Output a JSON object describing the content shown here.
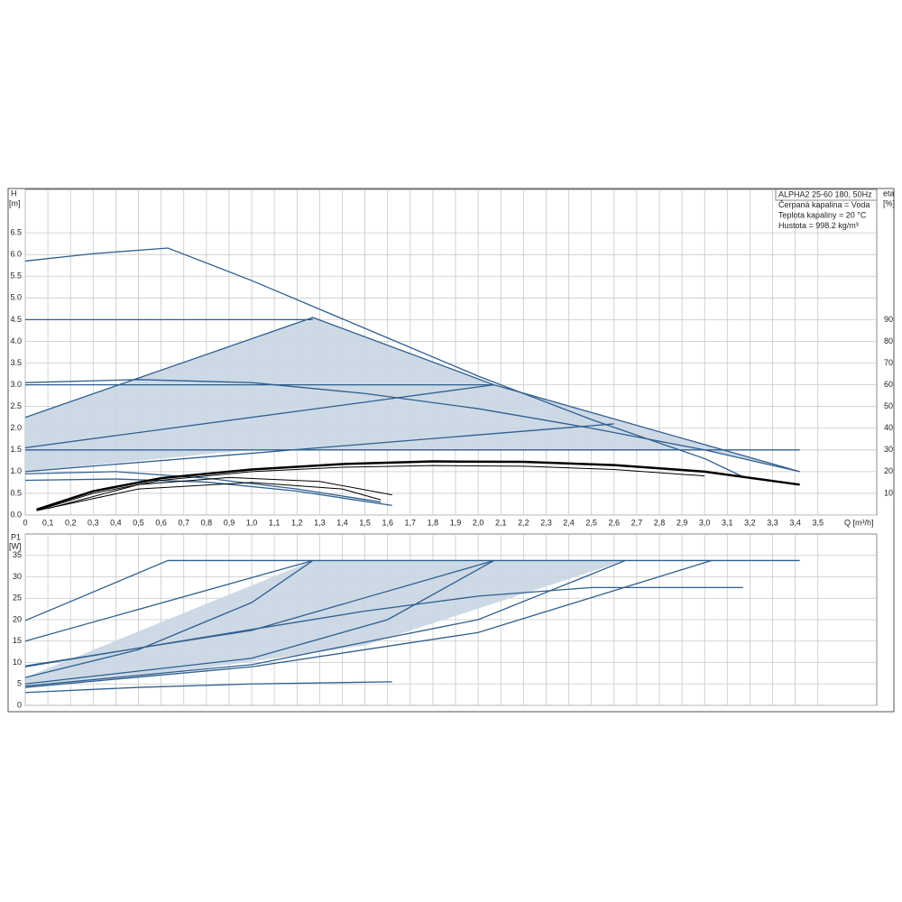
{
  "chart_data": [
    {
      "type": "line",
      "axis_label_y": "H",
      "axis_unit_y": "[m]",
      "axis_label_y2": "eta",
      "axis_unit_y2": "[%]",
      "axis_label_x": "Q [m³/h]",
      "info": [
        "ALPHA2 25-60 180, 50Hz",
        "Čerpaná kapalina = Voda",
        "Teplota kapaliny = 20 °C",
        "Hustota = 998.2 kg/m³"
      ],
      "xlim": [
        0,
        3.76
      ],
      "ylim": [
        0,
        7.5
      ],
      "y2lim": [
        0,
        150
      ],
      "grid": true,
      "xticks": [
        0,
        {
          "value": 0.1,
          "label": "0,1"
        },
        {
          "value": 0.2,
          "label": "0,2"
        },
        {
          "value": 0.3,
          "label": "0,3"
        },
        {
          "value": 0.4,
          "label": "0,4"
        },
        {
          "value": 0.5,
          "label": "0,5"
        },
        {
          "value": 0.6,
          "label": "0,6"
        },
        {
          "value": 0.7,
          "label": "0,7"
        },
        {
          "value": 0.8,
          "label": "0,8"
        },
        {
          "value": 0.9,
          "label": "0,9"
        },
        {
          "value": 1.0,
          "label": "1,0"
        },
        {
          "value": 1.1,
          "label": "1,1"
        },
        {
          "value": 1.2,
          "label": "1,2"
        },
        {
          "value": 1.3,
          "label": "1,3"
        },
        {
          "value": 1.4,
          "label": "1,4"
        },
        {
          "value": 1.5,
          "label": "1,5"
        },
        {
          "value": 1.6,
          "label": "1,6"
        },
        {
          "value": 1.7,
          "label": "1,7"
        },
        {
          "value": 1.8,
          "label": "1,8"
        },
        {
          "value": 1.9,
          "label": "1,9"
        },
        {
          "value": 2.0,
          "label": "2,0"
        },
        {
          "value": 2.1,
          "label": "2,1"
        },
        {
          "value": 2.2,
          "label": "2,2"
        },
        {
          "value": 2.3,
          "label": "2,3"
        },
        {
          "value": 2.4,
          "label": "2,4"
        },
        {
          "value": 2.5,
          "label": "2,5"
        },
        {
          "value": 2.6,
          "label": "2,6"
        },
        {
          "value": 2.7,
          "label": "2,7"
        },
        {
          "value": 2.8,
          "label": "2,8"
        },
        {
          "value": 2.9,
          "label": "2,9"
        },
        {
          "value": 3.0,
          "label": "3,0"
        },
        {
          "value": 3.1,
          "label": "3,1"
        },
        {
          "value": 3.2,
          "label": "3,2"
        },
        {
          "value": 3.3,
          "label": "3,3"
        },
        {
          "value": 3.4,
          "label": "3,4"
        },
        {
          "value": 3.5,
          "label": "3,5"
        }
      ],
      "yticks": [
        {
          "value": 0,
          "label": "0.0"
        },
        0.5,
        {
          "value": 1,
          "label": "1.0"
        },
        1.5,
        {
          "value": 2,
          "label": "2.0"
        },
        2.5,
        {
          "value": 3,
          "label": "3.0"
        },
        3.5,
        {
          "value": 4,
          "label": "4.0"
        },
        4.5,
        {
          "value": 5,
          "label": "5.0"
        },
        5.5,
        {
          "value": 6,
          "label": "6.0"
        },
        6.5
      ],
      "y2ticks": [
        10,
        20,
        30,
        40,
        50,
        60,
        70,
        80,
        90
      ],
      "areas": [
        {
          "color": "#c9d5e3",
          "x": [
            0,
            0,
            1.27,
            2.07,
            3.42,
            3.0,
            1.0
          ],
          "values": [
            1.0,
            2.25,
            4.55,
            3.0,
            1.0,
            1.5,
            1.5
          ]
        }
      ],
      "series": [
        {
          "color": "#2f5f8f",
          "x": [
            0,
            0.3,
            0.63,
            1.0,
            1.5,
            2.0,
            2.5,
            3.0,
            3.17
          ],
          "values": [
            5.85,
            6.02,
            6.15,
            5.4,
            4.3,
            3.2,
            2.2,
            1.3,
            0.88
          ]
        },
        {
          "color": "#2f5f8f",
          "x": [
            0,
            1.27
          ],
          "values": [
            4.5,
            4.5
          ]
        },
        {
          "color": "#2f5f8f",
          "x": [
            0,
            2.07
          ],
          "values": [
            3.0,
            3.0
          ]
        },
        {
          "color": "#2f5f8f",
          "x": [
            0,
            3.42
          ],
          "values": [
            1.5,
            1.5
          ]
        },
        {
          "color": "#2f5f8f",
          "x": [
            0,
            1.27,
            2.07,
            3.42
          ],
          "values": [
            2.25,
            4.55,
            3.0,
            1.0
          ]
        },
        {
          "color": "#2f5f8f",
          "x": [
            0,
            2.07
          ],
          "values": [
            1.55,
            3.0
          ]
        },
        {
          "color": "#2f5f8f",
          "x": [
            0,
            2.6
          ],
          "values": [
            1.0,
            2.1
          ]
        },
        {
          "color": "#2f5f8f",
          "x": [
            0,
            0.5,
            1.0,
            1.5,
            2.0,
            2.5,
            3.0,
            3.42
          ],
          "values": [
            3.05,
            3.12,
            3.05,
            2.8,
            2.45,
            2.0,
            1.5,
            1.0
          ]
        },
        {
          "color": "#2f5f8f",
          "x": [
            0,
            0.4,
            0.8,
            1.2,
            1.62
          ],
          "values": [
            0.8,
            0.83,
            0.76,
            0.55,
            0.22
          ]
        },
        {
          "color": "#2f5f8f",
          "x": [
            0,
            0.4,
            0.8,
            1.2,
            1.57
          ],
          "values": [
            0.95,
            1.0,
            0.85,
            0.6,
            0.3
          ]
        },
        {
          "color": "#000000",
          "axis": "y2",
          "width": 2.5,
          "x": [
            0.05,
            0.3,
            0.6,
            1.0,
            1.4,
            1.8,
            2.2,
            2.6,
            3.0,
            3.42
          ],
          "values": [
            2.5,
            11,
            17,
            21,
            23.5,
            24.7,
            24.5,
            23,
            20,
            14
          ]
        },
        {
          "color": "#000000",
          "axis": "y2",
          "width": 1,
          "x": [
            0.05,
            0.3,
            0.6,
            1.0,
            1.4,
            1.8,
            2.2,
            2.6,
            3.0
          ],
          "values": [
            2,
            10,
            16,
            20,
            22,
            22.8,
            22.5,
            21,
            18
          ]
        },
        {
          "color": "#000000",
          "axis": "y2",
          "width": 1,
          "x": [
            0.1,
            0.5,
            0.9,
            1.3,
            1.62
          ],
          "values": [
            3,
            14,
            17.3,
            15.5,
            9.3
          ]
        },
        {
          "color": "#000000",
          "axis": "y2",
          "width": 1,
          "x": [
            0.05,
            0.5,
            1.0,
            1.4,
            1.57
          ],
          "values": [
            2,
            12,
            15,
            12,
            7
          ]
        }
      ]
    },
    {
      "type": "line",
      "axis_label_y": "P1",
      "axis_unit_y": "[W]",
      "xlim": [
        0,
        3.76
      ],
      "ylim": [
        0,
        40
      ],
      "grid": true,
      "yticks": [
        0,
        5,
        10,
        15,
        20,
        25,
        30,
        35
      ],
      "areas": [
        {
          "color": "#c9d5e3",
          "x": [
            0,
            0,
            1.27,
            2.65,
            1.5,
            0.5
          ],
          "values": [
            4.5,
            6.5,
            33.8,
            33.8,
            14,
            6.5
          ]
        }
      ],
      "series": [
        {
          "color": "#2f5f8f",
          "x": [
            0,
            0.63,
            3.42
          ],
          "values": [
            19.8,
            33.8,
            33.8
          ]
        },
        {
          "color": "#2f5f8f",
          "x": [
            0,
            1.27
          ],
          "values": [
            15,
            33.8
          ]
        },
        {
          "color": "#2f5f8f",
          "x": [
            0,
            0.5,
            1.0,
            1.27
          ],
          "values": [
            6.5,
            13,
            24,
            33.8
          ]
        },
        {
          "color": "#2f5f8f",
          "x": [
            0,
            1.0,
            2.07
          ],
          "values": [
            9.2,
            17.5,
            33.8
          ]
        },
        {
          "color": "#2f5f8f",
          "x": [
            0,
            1.0,
            1.6,
            2.07
          ],
          "values": [
            5,
            11,
            20,
            33.8
          ]
        },
        {
          "color": "#2f5f8f",
          "x": [
            0,
            1.0,
            2.0,
            2.65
          ],
          "values": [
            4.5,
            9.5,
            20,
            33.8
          ]
        },
        {
          "color": "#2f5f8f",
          "x": [
            0,
            1.0,
            2.0,
            3.03
          ],
          "values": [
            4.2,
            9,
            17,
            33.8
          ]
        },
        {
          "color": "#2f5f8f",
          "x": [
            0,
            0.8,
            1.5,
            2.0,
            2.5,
            3.17
          ],
          "values": [
            9,
            16,
            22,
            25.5,
            27.5,
            27.5
          ]
        },
        {
          "color": "#2f5f8f",
          "x": [
            0,
            0.5,
            1.0,
            1.62
          ],
          "values": [
            3,
            4.2,
            5,
            5.5
          ]
        }
      ]
    }
  ]
}
